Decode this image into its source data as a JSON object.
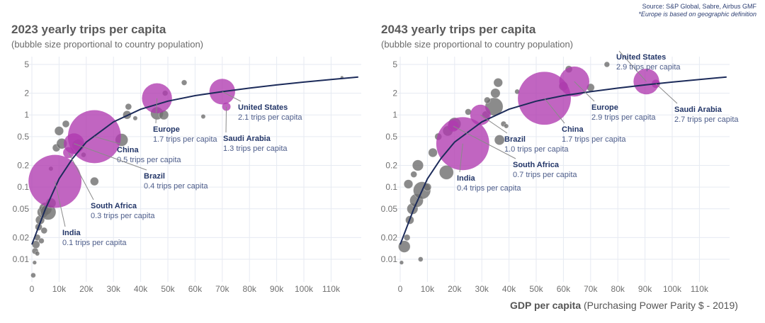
{
  "source": {
    "line1": "Source: S&P Global, Sabre, Airbus GMF",
    "line2": "*Europe is based on geographic definition"
  },
  "xaxis_label": {
    "bold": "GDP per capita",
    "rest": " (Purchasing Power Parity $ - 2019)"
  },
  "colors": {
    "highlight": "#b03ab0",
    "other": "#6e6e6e",
    "curve": "#1c2b5a",
    "grid": "#e6eaf2",
    "leader": "#8a8a8a"
  },
  "chart_data": [
    {
      "type": "scatter",
      "title": "2023 yearly trips per capita",
      "subtitle": "(bubble size proportional to country population)",
      "xlabel": "GDP per capita (Purchasing Power Parity $ - 2019)",
      "ylabel": "",
      "xlim": [
        0,
        120000
      ],
      "ylim": [
        0.005,
        7
      ],
      "yscale": "log",
      "grid": true,
      "x_ticks": [
        0,
        10000,
        20000,
        30000,
        40000,
        50000,
        60000,
        70000,
        80000,
        90000,
        100000,
        110000
      ],
      "x_tick_labels": [
        "0",
        "10k",
        "20k",
        "30k",
        "40k",
        "50k",
        "60k",
        "70k",
        "80k",
        "90k",
        "100k",
        "110k"
      ],
      "y_ticks": [
        5,
        2,
        1,
        0.5,
        0.2,
        0.1,
        0.05,
        0.02,
        0.01
      ],
      "y_tick_labels": [
        "5",
        "2",
        "1",
        "0.5",
        "0.2",
        "0.1",
        "0.05",
        "0.02",
        "0.01"
      ],
      "trend_curve": {
        "x": [
          0,
          5000,
          10000,
          15000,
          20000,
          30000,
          40000,
          50000,
          60000,
          70000,
          80000,
          90000,
          100000,
          110000,
          120000
        ],
        "y": [
          0.016,
          0.05,
          0.13,
          0.25,
          0.42,
          0.8,
          1.2,
          1.55,
          1.85,
          2.1,
          2.35,
          2.6,
          2.85,
          3.1,
          3.35
        ]
      },
      "highlighted": [
        {
          "name": "India",
          "x": 8500,
          "y": 0.12,
          "size": 1400,
          "label": "0.1 trips per capita"
        },
        {
          "name": "China",
          "x": 23000,
          "y": 0.5,
          "size": 1400,
          "label": "0.5 trips per capita"
        },
        {
          "name": "Brazil",
          "x": 15500,
          "y": 0.4,
          "size": 210,
          "label": "0.4 trips per capita"
        },
        {
          "name": "South Africa",
          "x": 13500,
          "y": 0.3,
          "size": 60,
          "label": "0.3 trips per capita"
        },
        {
          "name": "Europe",
          "x": 46000,
          "y": 1.7,
          "size": 450,
          "label": "1.7 trips per capita"
        },
        {
          "name": "United States",
          "x": 70000,
          "y": 2.1,
          "size": 330,
          "label": "2.1 trips per capita"
        },
        {
          "name": "Saudi Arabia",
          "x": 71500,
          "y": 1.3,
          "size": 35,
          "label": "1.3 trips per capita"
        }
      ],
      "others": [
        {
          "x": 500,
          "y": 0.006,
          "size": 12
        },
        {
          "x": 1000,
          "y": 0.009,
          "size": 8
        },
        {
          "x": 1200,
          "y": 0.013,
          "size": 20
        },
        {
          "x": 1500,
          "y": 0.016,
          "size": 30
        },
        {
          "x": 2000,
          "y": 0.02,
          "size": 20
        },
        {
          "x": 2500,
          "y": 0.028,
          "size": 25
        },
        {
          "x": 3000,
          "y": 0.035,
          "size": 40
        },
        {
          "x": 4000,
          "y": 0.045,
          "size": 60
        },
        {
          "x": 5000,
          "y": 0.05,
          "size": 80
        },
        {
          "x": 6000,
          "y": 0.045,
          "size": 120
        },
        {
          "x": 7000,
          "y": 0.06,
          "size": 50
        },
        {
          "x": 4500,
          "y": 0.025,
          "size": 20
        },
        {
          "x": 3500,
          "y": 0.018,
          "size": 15
        },
        {
          "x": 2000,
          "y": 0.012,
          "size": 10
        },
        {
          "x": 9000,
          "y": 0.35,
          "size": 30
        },
        {
          "x": 10000,
          "y": 0.6,
          "size": 40
        },
        {
          "x": 12500,
          "y": 0.75,
          "size": 25
        },
        {
          "x": 11000,
          "y": 0.4,
          "size": 55
        },
        {
          "x": 17000,
          "y": 0.38,
          "size": 70
        },
        {
          "x": 23000,
          "y": 0.12,
          "size": 35
        },
        {
          "x": 19000,
          "y": 0.28,
          "size": 12
        },
        {
          "x": 7000,
          "y": 0.18,
          "size": 10
        },
        {
          "x": 33000,
          "y": 0.45,
          "size": 80
        },
        {
          "x": 35000,
          "y": 1.0,
          "size": 35
        },
        {
          "x": 35500,
          "y": 1.3,
          "size": 20
        },
        {
          "x": 38000,
          "y": 0.9,
          "size": 10
        },
        {
          "x": 46000,
          "y": 1.05,
          "size": 80
        },
        {
          "x": 48500,
          "y": 1.0,
          "size": 45
        },
        {
          "x": 49000,
          "y": 2.0,
          "size": 15
        },
        {
          "x": 56000,
          "y": 2.8,
          "size": 15
        },
        {
          "x": 63000,
          "y": 0.95,
          "size": 10
        },
        {
          "x": 114000,
          "y": 3.3,
          "size": 5
        }
      ]
    },
    {
      "type": "scatter",
      "title": "2043 yearly trips per capita",
      "subtitle": "(bubble size proportional to country population)",
      "xlabel": "GDP per capita (Purchasing Power Parity $ - 2019)",
      "ylabel": "",
      "xlim": [
        0,
        120000
      ],
      "ylim": [
        0.005,
        7
      ],
      "yscale": "log",
      "grid": true,
      "x_ticks": [
        0,
        10000,
        20000,
        30000,
        40000,
        50000,
        60000,
        70000,
        80000,
        90000,
        100000,
        110000
      ],
      "x_tick_labels": [
        "0",
        "10k",
        "20k",
        "30k",
        "40k",
        "50k",
        "60k",
        "70k",
        "80k",
        "90k",
        "100k",
        "110k"
      ],
      "y_ticks": [
        5,
        2,
        1,
        0.5,
        0.2,
        0.1,
        0.05,
        0.02,
        0.01
      ],
      "y_tick_labels": [
        "5",
        "2",
        "1",
        "0.5",
        "0.2",
        "0.1",
        "0.05",
        "0.02",
        "0.01"
      ],
      "trend_curve": {
        "x": [
          0,
          5000,
          10000,
          15000,
          20000,
          30000,
          40000,
          50000,
          60000,
          70000,
          80000,
          90000,
          100000,
          110000,
          120000
        ],
        "y": [
          0.016,
          0.05,
          0.13,
          0.25,
          0.42,
          0.8,
          1.2,
          1.55,
          1.85,
          2.1,
          2.35,
          2.6,
          2.85,
          3.1,
          3.35
        ]
      },
      "highlighted": [
        {
          "name": "India",
          "x": 23000,
          "y": 0.4,
          "size": 1400,
          "label": "0.4 trips per capita"
        },
        {
          "name": "China",
          "x": 53000,
          "y": 1.7,
          "size": 1400,
          "label": "1.7 trips per capita"
        },
        {
          "name": "Brazil",
          "x": 29500,
          "y": 1.0,
          "size": 210,
          "label": "1.0 trips per capita"
        },
        {
          "name": "South Africa",
          "x": 19500,
          "y": 0.7,
          "size": 60,
          "label": "0.7 trips per capita"
        },
        {
          "name": "Europe",
          "x": 64000,
          "y": 2.9,
          "size": 450,
          "label": "2.9 trips per capita"
        },
        {
          "name": "United States",
          "x": 90500,
          "y": 2.9,
          "size": 330,
          "label": "2.9 trips per capita"
        },
        {
          "name": "Saudi Arabia",
          "x": 94000,
          "y": 2.7,
          "size": 35,
          "label": "2.7 trips per capita"
        }
      ],
      "others": [
        {
          "x": 500,
          "y": 0.009,
          "size": 8
        },
        {
          "x": 1500,
          "y": 0.015,
          "size": 70
        },
        {
          "x": 2500,
          "y": 0.02,
          "size": 20
        },
        {
          "x": 3500,
          "y": 0.035,
          "size": 35
        },
        {
          "x": 4500,
          "y": 0.05,
          "size": 60
        },
        {
          "x": 6000,
          "y": 0.065,
          "size": 90
        },
        {
          "x": 8000,
          "y": 0.09,
          "size": 150
        },
        {
          "x": 10000,
          "y": 0.1,
          "size": 30
        },
        {
          "x": 7500,
          "y": 0.01,
          "size": 12
        },
        {
          "x": 3000,
          "y": 0.11,
          "size": 40
        },
        {
          "x": 5000,
          "y": 0.15,
          "size": 20
        },
        {
          "x": 6500,
          "y": 0.2,
          "size": 60
        },
        {
          "x": 17000,
          "y": 0.16,
          "size": 100
        },
        {
          "x": 12000,
          "y": 0.3,
          "size": 40
        },
        {
          "x": 14000,
          "y": 0.5,
          "size": 25
        },
        {
          "x": 17500,
          "y": 0.6,
          "size": 50
        },
        {
          "x": 20000,
          "y": 0.75,
          "size": 80
        },
        {
          "x": 25000,
          "y": 1.1,
          "size": 20
        },
        {
          "x": 31500,
          "y": 1.0,
          "size": 30
        },
        {
          "x": 34500,
          "y": 1.3,
          "size": 160
        },
        {
          "x": 32000,
          "y": 1.6,
          "size": 20
        },
        {
          "x": 35000,
          "y": 2.0,
          "size": 45
        },
        {
          "x": 36000,
          "y": 2.8,
          "size": 40
        },
        {
          "x": 38000,
          "y": 0.75,
          "size": 15
        },
        {
          "x": 39000,
          "y": 0.7,
          "size": 10
        },
        {
          "x": 36500,
          "y": 0.45,
          "size": 50
        },
        {
          "x": 43000,
          "y": 2.1,
          "size": 12
        },
        {
          "x": 60000,
          "y": 2.5,
          "size": 40
        },
        {
          "x": 62000,
          "y": 4.3,
          "size": 25
        },
        {
          "x": 70000,
          "y": 2.4,
          "size": 30
        },
        {
          "x": 76000,
          "y": 5.0,
          "size": 15
        }
      ]
    }
  ]
}
